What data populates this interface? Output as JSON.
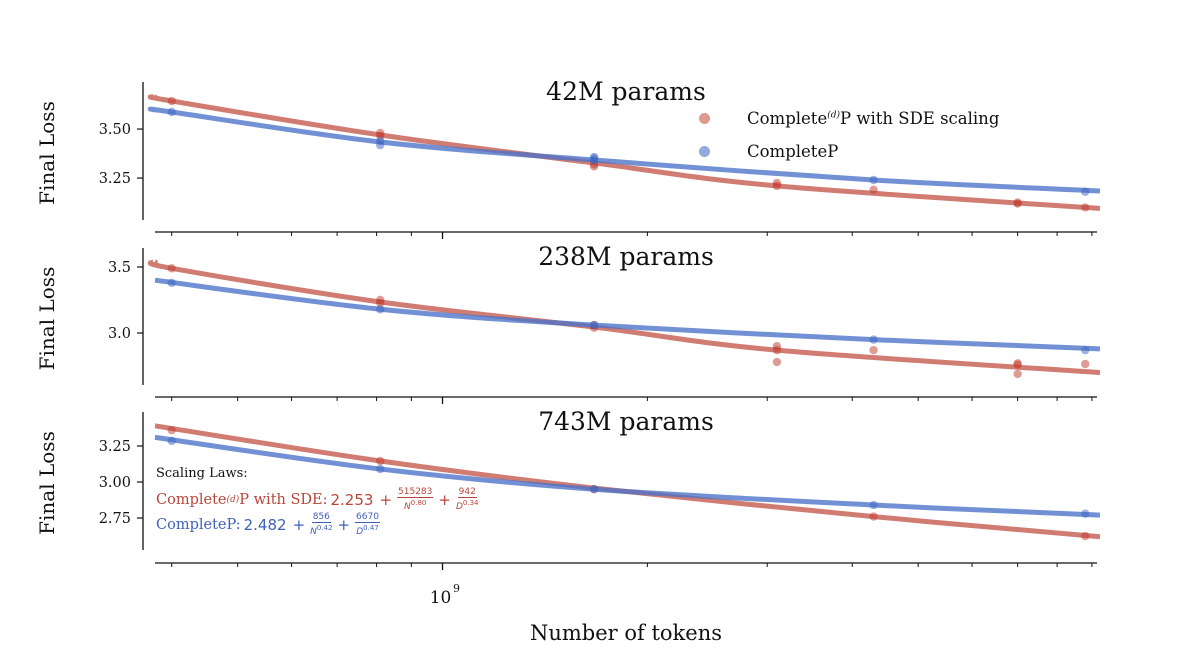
{
  "chart_data": {
    "type": "scatter",
    "xlabel": "Number of tokens",
    "ylabel": "Final Loss",
    "xscale": "log",
    "xlim": [
      378000000.0,
      9250000000.0
    ],
    "xtick_labels": [
      {
        "value": 1000000000.0,
        "label": "10",
        "exp": "9"
      }
    ],
    "colors": {
      "sde": "#c4574a",
      "completep": "#4a72c8"
    },
    "legend": {
      "placement": "top-right (first panel)",
      "entries": [
        {
          "key": "sde",
          "prefix": "Complete",
          "sup": "(d)",
          "suffix": "P with SDE scaling"
        },
        {
          "key": "completep",
          "prefix": "CompleteP",
          "sup": "",
          "suffix": ""
        }
      ]
    },
    "panels": [
      {
        "title": "42M params",
        "ylim": [
          3.036,
          3.74
        ],
        "yticks": [
          {
            "v": 3.5,
            "label": "3.50"
          },
          {
            "v": 3.25,
            "label": "3.25"
          }
        ],
        "series": [
          {
            "key": "sde",
            "points": [
              [
                400000000.0,
                3.643
              ],
              [
                810000000.0,
                3.48
              ],
              [
                810000000.0,
                3.465
              ],
              [
                1670000000.0,
                3.32
              ],
              [
                1670000000.0,
                3.31
              ],
              [
                3100000000.0,
                3.225
              ],
              [
                3100000000.0,
                3.21
              ],
              [
                4300000000.0,
                3.19
              ],
              [
                7000000000.0,
                3.12
              ],
              [
                7000000000.0,
                3.125
              ],
              [
                8800000000.0,
                3.1
              ]
            ],
            "fit": [
              [
                378000000.0,
                3.663
              ],
              [
                400000000.0,
                3.643
              ],
              [
                810000000.0,
                3.47
              ],
              [
                1670000000.0,
                3.327
              ],
              [
                3100000000.0,
                3.21
              ],
              [
                9250000000.0,
                3.095
              ]
            ]
          },
          {
            "key": "completep",
            "points": [
              [
                400000000.0,
                3.587
              ],
              [
                810000000.0,
                3.418
              ],
              [
                810000000.0,
                3.44
              ],
              [
                1670000000.0,
                3.357
              ],
              [
                1670000000.0,
                3.34
              ],
              [
                1670000000.0,
                3.35
              ],
              [
                4300000000.0,
                3.24
              ],
              [
                8800000000.0,
                3.18
              ]
            ],
            "fit": [
              [
                378000000.0,
                3.597
              ],
              [
                400000000.0,
                3.587
              ],
              [
                810000000.0,
                3.434
              ],
              [
                1670000000.0,
                3.342
              ],
              [
                4300000000.0,
                3.24
              ],
              [
                9250000000.0,
                3.184
              ]
            ]
          }
        ]
      },
      {
        "title": "238M params",
        "ylim": [
          2.606,
          3.644
        ],
        "yticks": [
          {
            "v": 3.5,
            "label": "3.5"
          },
          {
            "v": 3.0,
            "label": "3.0"
          }
        ],
        "series": [
          {
            "key": "sde",
            "points": [
              [
                400000000.0,
                3.49
              ],
              [
                810000000.0,
                3.25
              ],
              [
                810000000.0,
                3.227
              ],
              [
                1670000000.0,
                3.06
              ],
              [
                1670000000.0,
                3.04
              ],
              [
                3100000000.0,
                2.9
              ],
              [
                3100000000.0,
                2.87
              ],
              [
                3100000000.0,
                2.78
              ],
              [
                4300000000.0,
                2.87
              ],
              [
                7000000000.0,
                2.77
              ],
              [
                7000000000.0,
                2.76
              ],
              [
                7000000000.0,
                2.69
              ],
              [
                8800000000.0,
                2.765
              ]
            ],
            "fit": [
              [
                378000000.0,
                3.54
              ],
              [
                400000000.0,
                3.49
              ],
              [
                810000000.0,
                3.235
              ],
              [
                1670000000.0,
                3.045
              ],
              [
                3100000000.0,
                2.87
              ],
              [
                9250000000.0,
                2.7
              ]
            ]
          },
          {
            "key": "completep",
            "points": [
              [
                400000000.0,
                3.38
              ],
              [
                810000000.0,
                3.18
              ],
              [
                1670000000.0,
                3.06
              ],
              [
                4300000000.0,
                2.95
              ],
              [
                8800000000.0,
                2.87
              ]
            ],
            "fit": [
              [
                378000000.0,
                3.4
              ],
              [
                810000000.0,
                3.18
              ],
              [
                1670000000.0,
                3.06
              ],
              [
                4300000000.0,
                2.95
              ],
              [
                9250000000.0,
                2.88
              ]
            ]
          }
        ]
      },
      {
        "title": "743M params",
        "ylim": [
          2.528,
          3.486
        ],
        "yticks": [
          {
            "v": 3.25,
            "label": "3.25"
          },
          {
            "v": 3.0,
            "label": "3.00"
          },
          {
            "v": 2.75,
            "label": "2.75"
          }
        ],
        "series": [
          {
            "key": "sde",
            "points": [
              [
                400000000.0,
                3.36
              ],
              [
                810000000.0,
                3.146
              ],
              [
                1670000000.0,
                2.95
              ],
              [
                4300000000.0,
                2.76
              ],
              [
                8800000000.0,
                2.625
              ]
            ],
            "fit": [
              [
                378000000.0,
                3.39
              ],
              [
                810000000.0,
                3.146
              ],
              [
                1670000000.0,
                2.958
              ],
              [
                4300000000.0,
                2.76
              ],
              [
                9250000000.0,
                2.62
              ]
            ]
          },
          {
            "key": "completep",
            "points": [
              [
                400000000.0,
                3.285
              ],
              [
                810000000.0,
                3.09
              ],
              [
                1670000000.0,
                2.95
              ],
              [
                4300000000.0,
                2.84
              ],
              [
                8800000000.0,
                2.78
              ]
            ],
            "fit": [
              [
                378000000.0,
                3.31
              ],
              [
                810000000.0,
                3.09
              ],
              [
                1670000000.0,
                2.95
              ],
              [
                4300000000.0,
                2.84
              ],
              [
                9250000000.0,
                2.77
              ]
            ]
          }
        ]
      }
    ],
    "scaling_laws": {
      "title": "Scaling Laws:",
      "laws": [
        {
          "key": "sde",
          "prefix": "Complete",
          "sup": "(d)",
          "suffix": "P with SDE: ",
          "const": "2.253",
          "terms": [
            {
              "num": "515283",
              "base": "N",
              "exp": "0.80"
            },
            {
              "num": "942",
              "base": "D",
              "exp": "0.34"
            }
          ]
        },
        {
          "key": "completep",
          "prefix": "CompleteP: ",
          "sup": "",
          "suffix": "",
          "const": "2.482",
          "terms": [
            {
              "num": "856",
              "base": "N",
              "exp": "0.42"
            },
            {
              "num": "6670",
              "base": "D",
              "exp": "0.47"
            }
          ]
        }
      ]
    }
  }
}
